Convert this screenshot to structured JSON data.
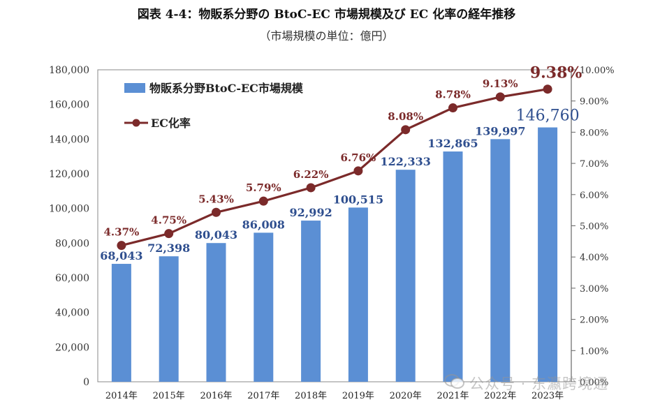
{
  "title": "図表 4-4：物販系分野の BtoC-EC 市場規模及び EC 化率の経年推移",
  "subtitle": "（市場規模の単位：億円）",
  "watermark": "公众号 · 东瀛跨境通",
  "colors": {
    "bar": "#5B8FD4",
    "line": "#7B2A2A",
    "bar_label": "#2F4F8F",
    "line_label": "#7B2A2A"
  },
  "chart_data": {
    "type": "bar",
    "categories": [
      "2014年",
      "2015年",
      "2016年",
      "2017年",
      "2018年",
      "2019年",
      "2020年",
      "2021年",
      "2022年",
      "2023年"
    ],
    "series": [
      {
        "name": "物販系分野BtoC-EC市場規模",
        "type": "bar",
        "axis": "left",
        "values": [
          68043,
          72398,
          80043,
          86008,
          92992,
          100515,
          122333,
          132865,
          139997,
          146760
        ],
        "labels": [
          "68,043",
          "72,398",
          "80,043",
          "86,008",
          "92,992",
          "100,515",
          "122,333",
          "132,865",
          "139,997",
          "146,760"
        ]
      },
      {
        "name": "EC化率",
        "type": "line",
        "axis": "right",
        "values": [
          4.37,
          4.75,
          5.43,
          5.79,
          6.22,
          6.76,
          8.08,
          8.78,
          9.13,
          9.38
        ],
        "labels": [
          "4.37%",
          "4.75%",
          "5.43%",
          "5.79%",
          "6.22%",
          "6.76%",
          "8.08%",
          "8.78%",
          "9.13%",
          "9.38%"
        ]
      }
    ],
    "y_left": {
      "ylim": [
        0,
        180000
      ],
      "ticks": [
        "0",
        "20,000",
        "40,000",
        "60,000",
        "80,000",
        "100,000",
        "120,000",
        "140,000",
        "160,000",
        "180,000"
      ]
    },
    "y_right": {
      "ylim": [
        0,
        10
      ],
      "ticks": [
        "0.00%",
        "1.00%",
        "2.00%",
        "3.00%",
        "4.00%",
        "5.00%",
        "6.00%",
        "7.00%",
        "8.00%",
        "9.00%",
        "10.00%"
      ]
    },
    "legend_position": "top-left",
    "grid": false
  }
}
